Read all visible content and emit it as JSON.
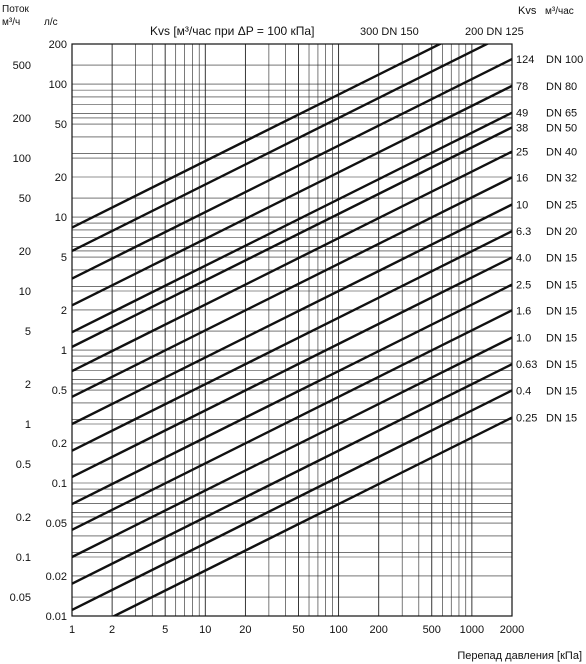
{
  "chart_data": {
    "type": "line",
    "x_scale": "log",
    "y_scale": "log",
    "grid": true,
    "title": "Kvs [м³/час при ΔP = 100 кПа]",
    "xlabel": "Перепад давления [кПа]",
    "xlim": [
      1,
      2000
    ],
    "ylim_ls": [
      0.01,
      200
    ],
    "ylim_m3h": [
      0.036,
      720
    ],
    "left_axis_unit_m3h": "м³/ч",
    "left_axis_unit_ls": "л/с",
    "left_axis_title": "Поток",
    "right_header_kvs": "Kvs",
    "right_header_unit": "м³/час",
    "x_ticks": [
      "1",
      "2",
      "5",
      "10",
      "20",
      "50",
      "100",
      "200",
      "500",
      "1000",
      "2000"
    ],
    "ls_ticks": [
      "200",
      "100",
      "50",
      "20",
      "10",
      "5",
      "2",
      "1",
      "0.5",
      "0.2",
      "0.1",
      "0.05",
      "0.02",
      "0.01"
    ],
    "m3h_ticks": [
      "500",
      "200",
      "100",
      "50",
      "20",
      "10",
      "5",
      "2",
      "1",
      "0.5",
      "0.2",
      "0.1",
      "0.05"
    ],
    "top_series_labels": [
      "300 DN 150",
      "200 DN 125"
    ],
    "series": [
      {
        "kvs": 300,
        "dn": "DN 150"
      },
      {
        "kvs": 200,
        "dn": "DN 125"
      },
      {
        "kvs": 124,
        "dn": "DN 100"
      },
      {
        "kvs": 78,
        "dn": "DN 80"
      },
      {
        "kvs": 49,
        "dn": "DN 65"
      },
      {
        "kvs": 38,
        "dn": "DN 50"
      },
      {
        "kvs": 25,
        "dn": "DN 40"
      },
      {
        "kvs": 16,
        "dn": "DN 32"
      },
      {
        "kvs": 10,
        "dn": "DN 25"
      },
      {
        "kvs": 6.3,
        "dn": "DN 20"
      },
      {
        "kvs": 4.0,
        "dn": "DN 15"
      },
      {
        "kvs": 2.5,
        "dn": "DN 15"
      },
      {
        "kvs": 1.6,
        "dn": "DN 15"
      },
      {
        "kvs": 1.0,
        "dn": "DN 15"
      },
      {
        "kvs": 0.63,
        "dn": "DN 15"
      },
      {
        "kvs": 0.4,
        "dn": "DN 15"
      },
      {
        "kvs": 0.25,
        "dn": "DN 15"
      }
    ],
    "right_labels": [
      {
        "kvs": "124",
        "dn": "DN 100"
      },
      {
        "kvs": "78",
        "dn": "DN 80"
      },
      {
        "kvs": "49",
        "dn": "DN 65"
      },
      {
        "kvs": "38",
        "dn": "DN 50"
      },
      {
        "kvs": "25",
        "dn": "DN 40"
      },
      {
        "kvs": "16",
        "dn": "DN 32"
      },
      {
        "kvs": "10",
        "dn": "DN 25"
      },
      {
        "kvs": "6.3",
        "dn": "DN 20"
      },
      {
        "kvs": "4.0",
        "dn": "DN 15"
      },
      {
        "kvs": "2.5",
        "dn": "DN 15"
      },
      {
        "kvs": "1.6",
        "dn": "DN 15"
      },
      {
        "kvs": "1.0",
        "dn": "DN 15"
      },
      {
        "kvs": "0.63",
        "dn": "DN 15"
      },
      {
        "kvs": "0.4",
        "dn": "DN 15"
      },
      {
        "kvs": "0.25",
        "dn": "DN 15"
      }
    ]
  }
}
